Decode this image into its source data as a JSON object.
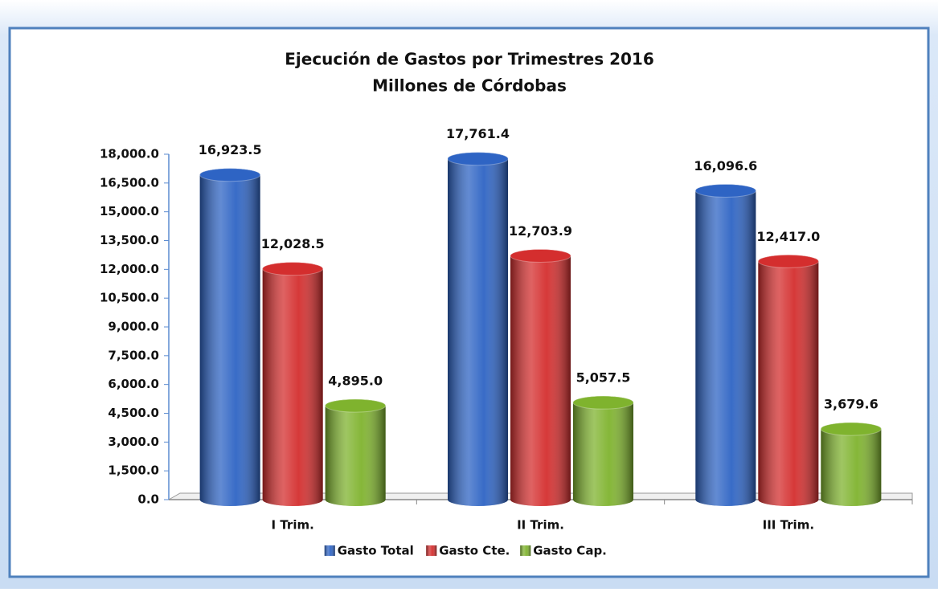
{
  "chart_data": {
    "type": "bar",
    "title": "Ejecución de  Gastos por Trimestres 2016",
    "subtitle": "Millones de Córdobas",
    "categories": [
      "I Trim.",
      "II Trim.",
      "III Trim."
    ],
    "series": [
      {
        "name": "Gasto Total",
        "color": "#2e64c4",
        "values": [
          16923.5,
          17761.4,
          16096.6
        ],
        "value_labels": [
          "16,923.5",
          "17,761.4",
          "16,096.6"
        ]
      },
      {
        "name": "Gasto Cte.",
        "color": "#d42e2e",
        "values": [
          12028.5,
          12703.9,
          12417.0
        ],
        "value_labels": [
          "12,028.5",
          "12,703.9",
          "12,417.0"
        ]
      },
      {
        "name": "Gasto Cap.",
        "color": "#7fb32e",
        "values": [
          4895.0,
          5057.5,
          3679.6
        ],
        "value_labels": [
          "4,895.0",
          "5,057.5",
          "3,679.6"
        ]
      }
    ],
    "ylim": [
      0,
      18000
    ],
    "yticks": [
      {
        "value": 0,
        "label": "0.0"
      },
      {
        "value": 1500,
        "label": "1,500.0"
      },
      {
        "value": 3000,
        "label": "3,000.0"
      },
      {
        "value": 4500,
        "label": "4,500.0"
      },
      {
        "value": 6000,
        "label": "6,000.0"
      },
      {
        "value": 7500,
        "label": "7,500.0"
      },
      {
        "value": 9000,
        "label": "9,000.0"
      },
      {
        "value": 10500,
        "label": "10,500.0"
      },
      {
        "value": 12000,
        "label": "12,000.0"
      },
      {
        "value": 13500,
        "label": "13,500.0"
      },
      {
        "value": 15000,
        "label": "15,000.0"
      },
      {
        "value": 16500,
        "label": "16,500.0"
      },
      {
        "value": 18000,
        "label": "18,000.0"
      }
    ],
    "legend": "bottom"
  }
}
